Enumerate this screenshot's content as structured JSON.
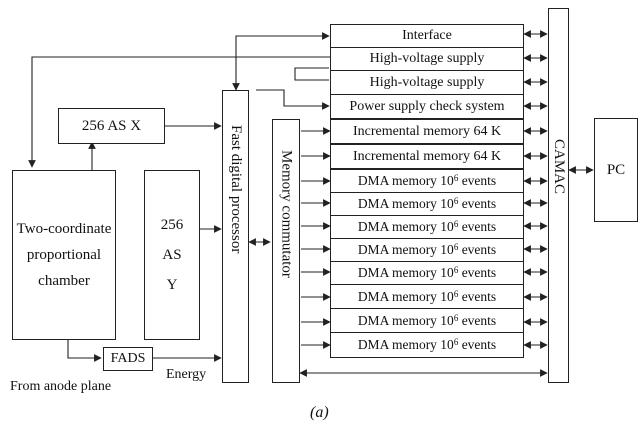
{
  "diagram": {
    "left": {
      "as_x": "256 AS X",
      "chamber_lines": [
        "Two-coordinate",
        "proportional",
        "chamber"
      ],
      "as_y_lines": [
        "256",
        "AS",
        "Y"
      ],
      "fads": "FADS",
      "from_anode": "From anode plane",
      "energy": "Energy"
    },
    "center": {
      "fast_processor": "Fast digital processor",
      "memory_commutator": "Memory commutator"
    },
    "modules": [
      {
        "text": "Interface"
      },
      {
        "text": "High-voltage supply"
      },
      {
        "text": "High-voltage supply"
      },
      {
        "text": "Power supply check system"
      },
      {
        "text": "Incremental memory 64 K"
      },
      {
        "text": "Incremental memory 64 K"
      }
    ],
    "dma": {
      "prefix": "DMA memory 10",
      "exp": "6",
      "suffix": " events",
      "count": 8
    },
    "right": {
      "camac": "CAMAC",
      "pc": "PC"
    },
    "caption": "(a)"
  }
}
